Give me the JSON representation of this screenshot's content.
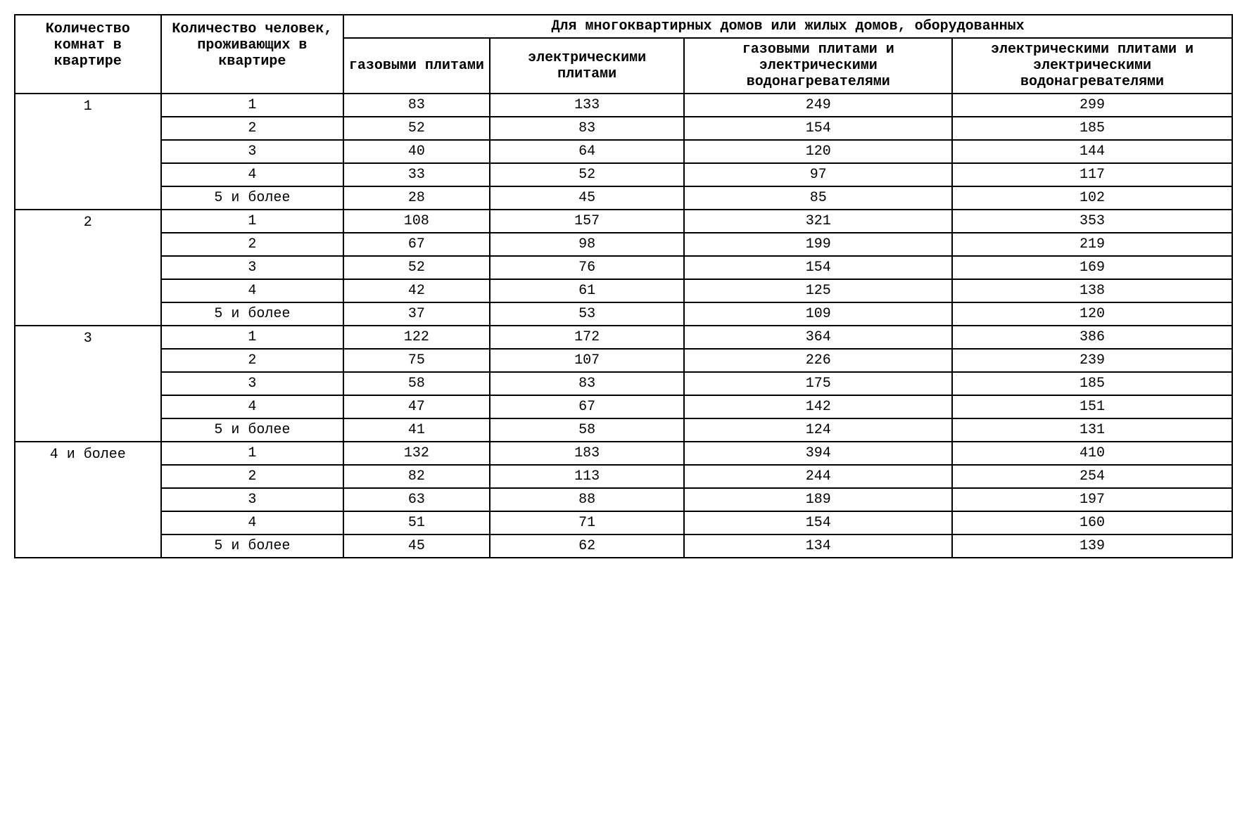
{
  "table": {
    "type": "table",
    "background_color": "#ffffff",
    "border_color": "#000000",
    "font_family": "Courier New",
    "header_fontsize": 20,
    "cell_fontsize": 20,
    "headers": {
      "rooms": "Количество комнат в квартире",
      "people": "Количество человек, проживающих в квартире",
      "super": "Для многоквартирных домов или жилых домов, оборудованных",
      "col1": "газовыми плитами",
      "col2": "электрическими плитами",
      "col3": "газовыми плитами и электрическими водонагревателями",
      "col4": "электрическими плитами и электрическими водонагревателями"
    },
    "groups": [
      {
        "room_label": "1",
        "rows": [
          {
            "people": "1",
            "v": [
              "83",
              "133",
              "249",
              "299"
            ]
          },
          {
            "people": "2",
            "v": [
              "52",
              "83",
              "154",
              "185"
            ]
          },
          {
            "people": "3",
            "v": [
              "40",
              "64",
              "120",
              "144"
            ]
          },
          {
            "people": "4",
            "v": [
              "33",
              "52",
              "97",
              "117"
            ]
          },
          {
            "people": "5 и более",
            "v": [
              "28",
              "45",
              "85",
              "102"
            ]
          }
        ]
      },
      {
        "room_label": "2",
        "rows": [
          {
            "people": "1",
            "v": [
              "108",
              "157",
              "321",
              "353"
            ]
          },
          {
            "people": "2",
            "v": [
              "67",
              "98",
              "199",
              "219"
            ]
          },
          {
            "people": "3",
            "v": [
              "52",
              "76",
              "154",
              "169"
            ]
          },
          {
            "people": "4",
            "v": [
              "42",
              "61",
              "125",
              "138"
            ]
          },
          {
            "people": "5 и более",
            "v": [
              "37",
              "53",
              "109",
              "120"
            ]
          }
        ]
      },
      {
        "room_label": "3",
        "rows": [
          {
            "people": "1",
            "v": [
              "122",
              "172",
              "364",
              "386"
            ]
          },
          {
            "people": "2",
            "v": [
              "75",
              "107",
              "226",
              "239"
            ]
          },
          {
            "people": "3",
            "v": [
              "58",
              "83",
              "175",
              "185"
            ]
          },
          {
            "people": "4",
            "v": [
              "47",
              "67",
              "142",
              "151"
            ]
          },
          {
            "people": "5 и более",
            "v": [
              "41",
              "58",
              "124",
              "131"
            ]
          }
        ]
      },
      {
        "room_label": "4 и более",
        "rows": [
          {
            "people": "1",
            "v": [
              "132",
              "183",
              "394",
              "410"
            ]
          },
          {
            "people": "2",
            "v": [
              "82",
              "113",
              "244",
              "254"
            ]
          },
          {
            "people": "3",
            "v": [
              "63",
              "88",
              "189",
              "197"
            ]
          },
          {
            "people": "4",
            "v": [
              "51",
              "71",
              "154",
              "160"
            ]
          },
          {
            "people": "5 и более",
            "v": [
              "45",
              "62",
              "134",
              "139"
            ]
          }
        ]
      }
    ]
  }
}
